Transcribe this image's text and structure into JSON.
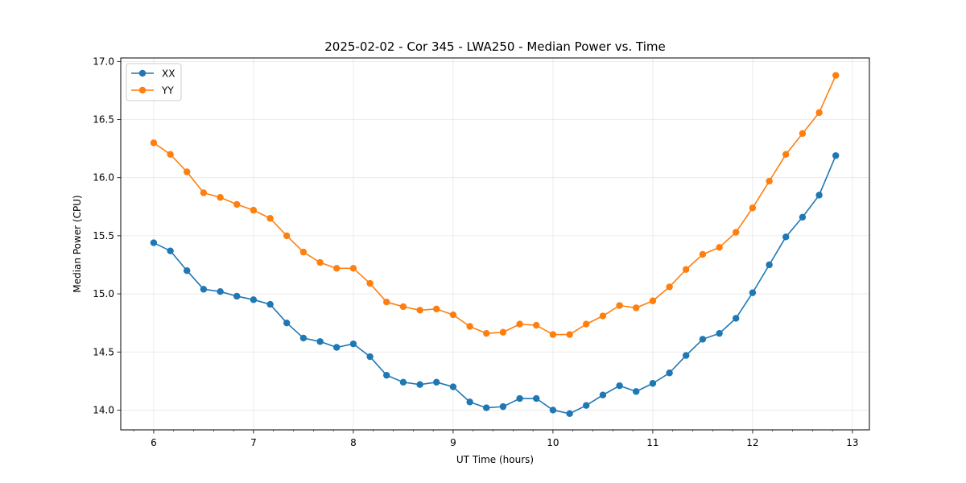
{
  "chart_data": {
    "type": "line",
    "title": "2025-02-02 - Cor 345 - LWA250 - Median Power vs. Time",
    "xlabel": "UT Time (hours)",
    "ylabel": "Median Power (CPU)",
    "xlim": [
      5.67,
      13.17
    ],
    "ylim": [
      13.83,
      17.03
    ],
    "xticks": [
      6,
      7,
      8,
      9,
      10,
      11,
      12,
      13
    ],
    "xtick_labels": [
      "6",
      "7",
      "8",
      "9",
      "10",
      "11",
      "12",
      "13"
    ],
    "xminor_step": 0.2,
    "yticks": [
      14.0,
      14.5,
      15.0,
      15.5,
      16.0,
      16.5,
      17.0
    ],
    "ytick_labels": [
      "14.0",
      "14.5",
      "15.0",
      "15.5",
      "16.0",
      "16.5",
      "17.0"
    ],
    "grid": true,
    "legend_position": "top-left",
    "x": [
      6.0,
      6.167,
      6.333,
      6.5,
      6.667,
      6.833,
      7.0,
      7.167,
      7.333,
      7.5,
      7.667,
      7.833,
      8.0,
      8.167,
      8.333,
      8.5,
      8.667,
      8.833,
      9.0,
      9.167,
      9.333,
      9.5,
      9.667,
      9.833,
      10.0,
      10.167,
      10.333,
      10.5,
      10.667,
      10.833,
      11.0,
      11.167,
      11.333,
      11.5,
      11.667,
      11.833,
      12.0,
      12.167,
      12.333,
      12.5,
      12.667,
      12.833
    ],
    "series": [
      {
        "name": "XX",
        "color": "#1f77b4",
        "values": [
          15.44,
          15.37,
          15.2,
          15.04,
          15.02,
          14.98,
          14.95,
          14.91,
          14.75,
          14.62,
          14.59,
          14.54,
          14.57,
          14.46,
          14.3,
          14.24,
          14.22,
          14.24,
          14.2,
          14.07,
          14.02,
          14.03,
          14.1,
          14.1,
          14.0,
          13.97,
          14.04,
          14.13,
          14.21,
          14.16,
          14.23,
          14.32,
          14.47,
          14.61,
          14.66,
          14.79,
          15.01,
          15.25,
          15.49,
          15.66,
          15.85,
          16.19
        ]
      },
      {
        "name": "YY",
        "color": "#ff7f0e",
        "values": [
          16.3,
          16.2,
          16.05,
          15.87,
          15.83,
          15.77,
          15.72,
          15.65,
          15.5,
          15.36,
          15.27,
          15.22,
          15.22,
          15.09,
          14.93,
          14.89,
          14.86,
          14.87,
          14.82,
          14.72,
          14.66,
          14.67,
          14.74,
          14.73,
          14.65,
          14.65,
          14.74,
          14.81,
          14.9,
          14.88,
          14.94,
          15.06,
          15.21,
          15.34,
          15.4,
          15.53,
          15.74,
          15.97,
          16.2,
          16.38,
          16.56,
          16.88
        ]
      }
    ]
  }
}
